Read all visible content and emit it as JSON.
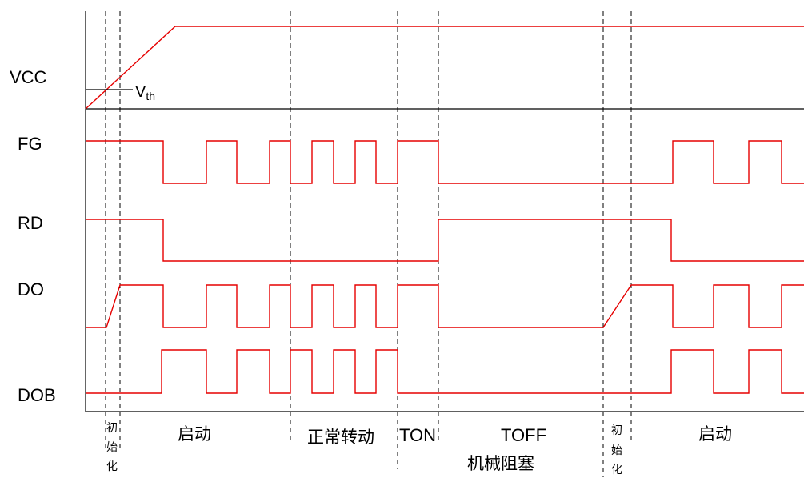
{
  "signals": {
    "vcc": "VCC",
    "fg": "FG",
    "rd": "RD",
    "do": "DO",
    "dob": "DOB"
  },
  "threshold": {
    "main": "V",
    "sub": "th"
  },
  "phases": {
    "startup_1": "启动",
    "normal_rotation": "正常转动",
    "ton": "TON",
    "toff": "TOFF",
    "mechanical_block": "机械阻塞",
    "startup_2": "启动",
    "init_1": [
      "初",
      "始",
      "化"
    ],
    "init_2": [
      "初",
      "始",
      "化"
    ]
  },
  "colors": {
    "waveform": "#e60000",
    "axis": "#000000"
  }
}
